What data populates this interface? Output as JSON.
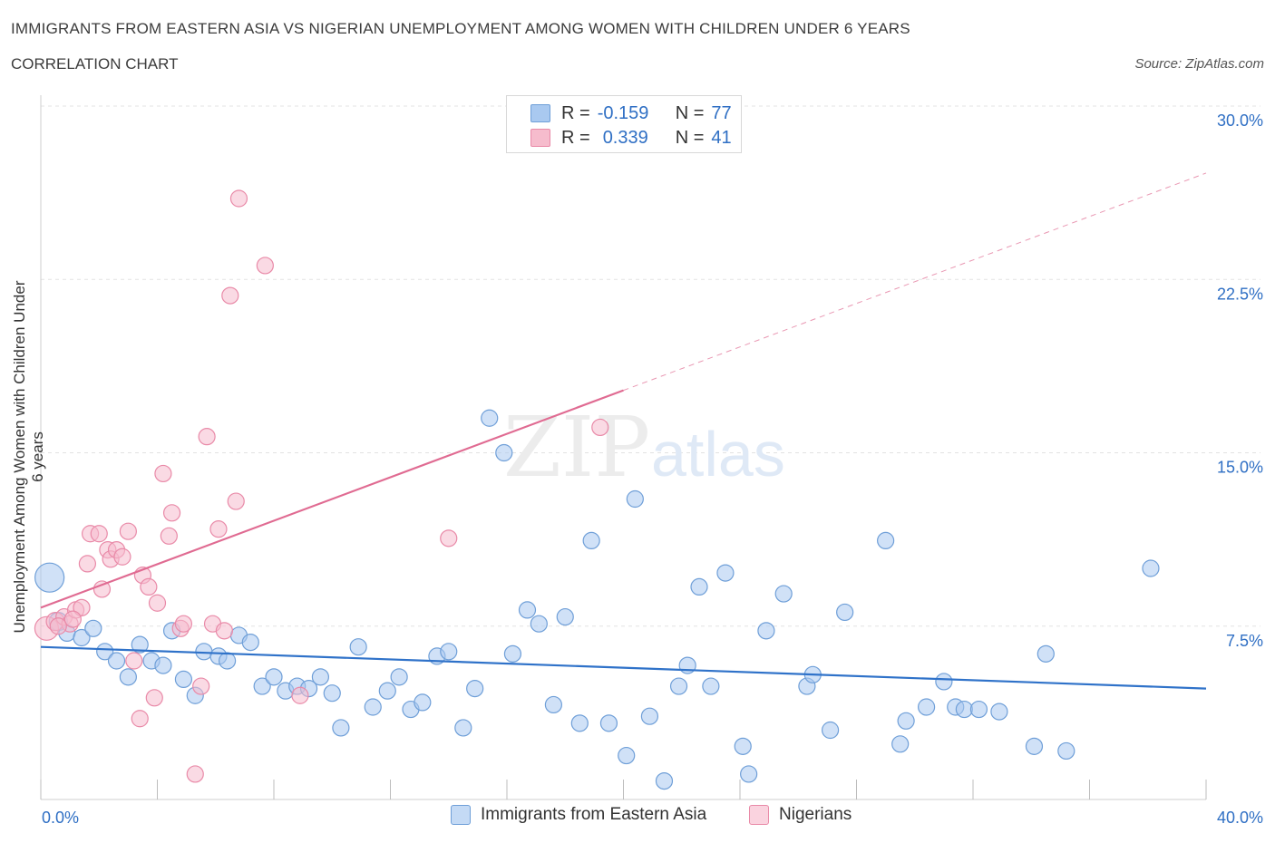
{
  "header": {
    "title": "IMMIGRANTS FROM EASTERN ASIA VS NIGERIAN UNEMPLOYMENT AMONG WOMEN WITH CHILDREN UNDER 6 YEARS",
    "subtitle": "CORRELATION CHART",
    "source": "Source: ZipAtlas.com"
  },
  "legend": {
    "rows": [
      {
        "r_label": "R =",
        "r_value": "-0.159",
        "n_label": "N =",
        "n_value": "77"
      },
      {
        "r_label": "R =",
        "r_value": "0.339",
        "n_label": "N =",
        "n_value": "41"
      }
    ]
  },
  "bottom_legend": {
    "blue": "Immigrants from Eastern Asia",
    "pink": "Nigerians"
  },
  "watermark": {
    "zip": "ZIP",
    "atlas": "atlas"
  },
  "colors": {
    "blue_fill": "#a9c9f0",
    "blue_stroke": "#6f9fd8",
    "blue_line": "#2f72c9",
    "pink_fill": "#f6bccd",
    "pink_stroke": "#e98aa8",
    "pink_line": "#e06b92",
    "axis_text": "#2f6fc4",
    "grid": "#e3e3e3"
  },
  "chart_data": {
    "type": "scatter",
    "title": "IMMIGRANTS FROM EASTERN ASIA VS NIGERIAN UNEMPLOYMENT AMONG WOMEN WITH CHILDREN UNDER 6 YEARS",
    "xlabel": "",
    "ylabel": "Unemployment Among Women with Children Under 6 years",
    "xlim": [
      0,
      40
    ],
    "ylim": [
      0,
      30
    ],
    "x_tick_labels": [
      "0.0%",
      "40.0%"
    ],
    "y_ticks": [
      7.5,
      15.0,
      22.5,
      30.0
    ],
    "y_tick_labels": [
      "7.5%",
      "15.0%",
      "22.5%",
      "30.0%"
    ],
    "grid": true,
    "series": [
      {
        "name": "Immigrants from Eastern Asia",
        "color": "#a9c9f0",
        "points": [
          [
            0.3,
            9.6,
            16
          ],
          [
            0.6,
            7.7,
            10
          ],
          [
            0.9,
            7.2,
            9
          ],
          [
            1.4,
            7.0,
            9
          ],
          [
            1.8,
            7.4,
            9
          ],
          [
            2.2,
            6.4,
            9
          ],
          [
            2.6,
            6.0,
            9
          ],
          [
            3.0,
            5.3,
            9
          ],
          [
            3.4,
            6.7,
            9
          ],
          [
            3.8,
            6.0,
            9
          ],
          [
            4.2,
            5.8,
            9
          ],
          [
            4.5,
            7.3,
            9
          ],
          [
            4.9,
            5.2,
            9
          ],
          [
            5.3,
            4.5,
            9
          ],
          [
            5.6,
            6.4,
            9
          ],
          [
            6.1,
            6.2,
            9
          ],
          [
            6.4,
            6.0,
            9
          ],
          [
            6.8,
            7.1,
            9
          ],
          [
            7.2,
            6.8,
            9
          ],
          [
            7.6,
            4.9,
            9
          ],
          [
            8.0,
            5.3,
            9
          ],
          [
            8.4,
            4.7,
            9
          ],
          [
            8.8,
            4.9,
            9
          ],
          [
            9.2,
            4.8,
            9
          ],
          [
            9.6,
            5.3,
            9
          ],
          [
            10.0,
            4.6,
            9
          ],
          [
            10.3,
            3.1,
            9
          ],
          [
            10.9,
            6.6,
            9
          ],
          [
            11.4,
            4.0,
            9
          ],
          [
            11.9,
            4.7,
            9
          ],
          [
            12.3,
            5.3,
            9
          ],
          [
            12.7,
            3.9,
            9
          ],
          [
            13.1,
            4.2,
            9
          ],
          [
            13.6,
            6.2,
            9
          ],
          [
            14.0,
            6.4,
            9
          ],
          [
            14.5,
            3.1,
            9
          ],
          [
            14.9,
            4.8,
            9
          ],
          [
            15.4,
            16.5,
            9
          ],
          [
            15.9,
            15.0,
            9
          ],
          [
            16.2,
            6.3,
            9
          ],
          [
            16.7,
            8.2,
            9
          ],
          [
            17.1,
            7.6,
            9
          ],
          [
            17.6,
            4.1,
            9
          ],
          [
            18.0,
            7.9,
            9
          ],
          [
            18.5,
            3.3,
            9
          ],
          [
            18.9,
            11.2,
            9
          ],
          [
            19.5,
            3.3,
            9
          ],
          [
            20.1,
            1.9,
            9
          ],
          [
            20.4,
            13.0,
            9
          ],
          [
            20.9,
            3.6,
            9
          ],
          [
            21.4,
            0.8,
            9
          ],
          [
            21.9,
            4.9,
            9
          ],
          [
            22.2,
            5.8,
            9
          ],
          [
            22.6,
            9.2,
            9
          ],
          [
            23.0,
            4.9,
            9
          ],
          [
            23.5,
            9.8,
            9
          ],
          [
            24.1,
            2.3,
            9
          ],
          [
            24.3,
            1.1,
            9
          ],
          [
            24.9,
            7.3,
            9
          ],
          [
            25.5,
            8.9,
            9
          ],
          [
            26.3,
            4.9,
            9
          ],
          [
            26.5,
            5.4,
            9
          ],
          [
            27.1,
            3.0,
            9
          ],
          [
            27.6,
            8.1,
            9
          ],
          [
            29.0,
            11.2,
            9
          ],
          [
            29.5,
            2.4,
            9
          ],
          [
            29.7,
            3.4,
            9
          ],
          [
            30.4,
            4.0,
            9
          ],
          [
            31.0,
            5.1,
            9
          ],
          [
            31.4,
            4.0,
            9
          ],
          [
            31.7,
            3.9,
            9
          ],
          [
            32.2,
            3.9,
            9
          ],
          [
            32.9,
            3.8,
            9
          ],
          [
            34.1,
            2.3,
            9
          ],
          [
            34.5,
            6.3,
            9
          ],
          [
            35.2,
            2.1,
            9
          ],
          [
            38.1,
            10.0,
            9
          ]
        ],
        "trend": {
          "x": [
            0,
            40
          ],
          "y": [
            6.6,
            4.8
          ]
        }
      },
      {
        "name": "Nigerians",
        "color": "#f6bccd",
        "points": [
          [
            0.2,
            7.4,
            13
          ],
          [
            0.5,
            7.7,
            10
          ],
          [
            0.8,
            7.9,
            9
          ],
          [
            1.0,
            7.6,
            9
          ],
          [
            1.2,
            8.2,
            9
          ],
          [
            1.4,
            8.3,
            9
          ],
          [
            1.6,
            10.2,
            9
          ],
          [
            1.7,
            11.5,
            9
          ],
          [
            2.0,
            11.5,
            9
          ],
          [
            2.1,
            9.1,
            9
          ],
          [
            2.3,
            10.8,
            9
          ],
          [
            2.4,
            10.4,
            9
          ],
          [
            2.6,
            10.8,
            9
          ],
          [
            2.8,
            10.5,
            9
          ],
          [
            3.0,
            11.6,
            9
          ],
          [
            3.2,
            6.0,
            9
          ],
          [
            3.4,
            3.5,
            9
          ],
          [
            3.5,
            9.7,
            9
          ],
          [
            3.7,
            9.2,
            9
          ],
          [
            3.9,
            4.4,
            9
          ],
          [
            4.0,
            8.5,
            9
          ],
          [
            4.2,
            14.1,
            9
          ],
          [
            4.4,
            11.4,
            9
          ],
          [
            4.5,
            12.4,
            9
          ],
          [
            4.8,
            7.4,
            9
          ],
          [
            4.9,
            7.6,
            9
          ],
          [
            5.3,
            1.1,
            9
          ],
          [
            5.5,
            4.9,
            9
          ],
          [
            5.7,
            15.7,
            9
          ],
          [
            5.9,
            7.6,
            9
          ],
          [
            6.1,
            11.7,
            9
          ],
          [
            6.3,
            7.3,
            9
          ],
          [
            6.5,
            21.8,
            9
          ],
          [
            6.7,
            12.9,
            9
          ],
          [
            6.8,
            26.0,
            9
          ],
          [
            7.7,
            23.1,
            9
          ],
          [
            8.9,
            4.5,
            9
          ],
          [
            14.0,
            11.3,
            9
          ],
          [
            19.2,
            16.1,
            9
          ],
          [
            1.1,
            7.8,
            9
          ],
          [
            0.6,
            7.5,
            9
          ]
        ],
        "trend": {
          "x": [
            0,
            20
          ],
          "y": [
            8.3,
            17.7
          ],
          "dashed_extension": {
            "x": [
              20,
              40
            ],
            "y": [
              17.7,
              27.1
            ]
          }
        }
      }
    ]
  }
}
